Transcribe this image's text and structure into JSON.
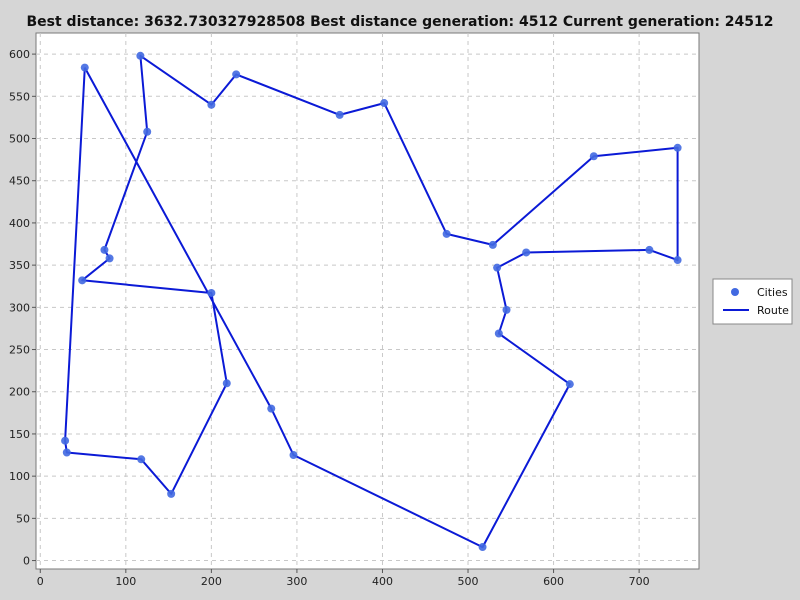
{
  "chart_data": {
    "type": "scatter",
    "title": "Best distance: 3632.730327928508   Best distance generation: 4512   Current generation: 24512",
    "xlabel": "",
    "ylabel": "",
    "xlim": [
      -5,
      770
    ],
    "ylim": [
      -10,
      625
    ],
    "xticks": [
      0,
      100,
      200,
      300,
      400,
      500,
      600,
      700
    ],
    "yticks": [
      0,
      50,
      100,
      150,
      200,
      250,
      300,
      350,
      400,
      450,
      500,
      550,
      600
    ],
    "grid": true,
    "legend_position": "right",
    "series": [
      {
        "name": "Cities",
        "kind": "markers",
        "color": "#4169e1",
        "points": [
          [
            52,
            584
          ],
          [
            117,
            598
          ],
          [
            125,
            508
          ],
          [
            75,
            368
          ],
          [
            81,
            358
          ],
          [
            49,
            332
          ],
          [
            200,
            317
          ],
          [
            218,
            210
          ],
          [
            153,
            79
          ],
          [
            118,
            120
          ],
          [
            31,
            128
          ],
          [
            29,
            142
          ],
          [
            200,
            540
          ],
          [
            229,
            576
          ],
          [
            350,
            528
          ],
          [
            402,
            542
          ],
          [
            475,
            387
          ],
          [
            529,
            374
          ],
          [
            647,
            479
          ],
          [
            745,
            489
          ],
          [
            745,
            356
          ],
          [
            712,
            368
          ],
          [
            568,
            365
          ],
          [
            534,
            347
          ],
          [
            545,
            297
          ],
          [
            536,
            269
          ],
          [
            619,
            209
          ],
          [
            517,
            16
          ],
          [
            296,
            125
          ],
          [
            270,
            180
          ]
        ]
      },
      {
        "name": "Route",
        "kind": "line",
        "color": "#0b1ad6",
        "order": [
          [
            52,
            584
          ],
          [
            270,
            180
          ],
          [
            296,
            125
          ],
          [
            517,
            16
          ],
          [
            619,
            209
          ],
          [
            536,
            269
          ],
          [
            545,
            297
          ],
          [
            534,
            347
          ],
          [
            568,
            365
          ],
          [
            712,
            368
          ],
          [
            745,
            356
          ],
          [
            745,
            489
          ],
          [
            647,
            479
          ],
          [
            529,
            374
          ],
          [
            475,
            387
          ],
          [
            402,
            542
          ],
          [
            350,
            528
          ],
          [
            229,
            576
          ],
          [
            200,
            540
          ],
          [
            117,
            598
          ],
          [
            125,
            508
          ],
          [
            75,
            368
          ],
          [
            81,
            358
          ],
          [
            49,
            332
          ],
          [
            200,
            317
          ],
          [
            218,
            210
          ],
          [
            153,
            79
          ],
          [
            118,
            120
          ],
          [
            31,
            128
          ],
          [
            29,
            142
          ],
          [
            52,
            584
          ]
        ]
      }
    ]
  },
  "legend": {
    "items": [
      {
        "label": "Cities"
      },
      {
        "label": "Route"
      }
    ]
  }
}
